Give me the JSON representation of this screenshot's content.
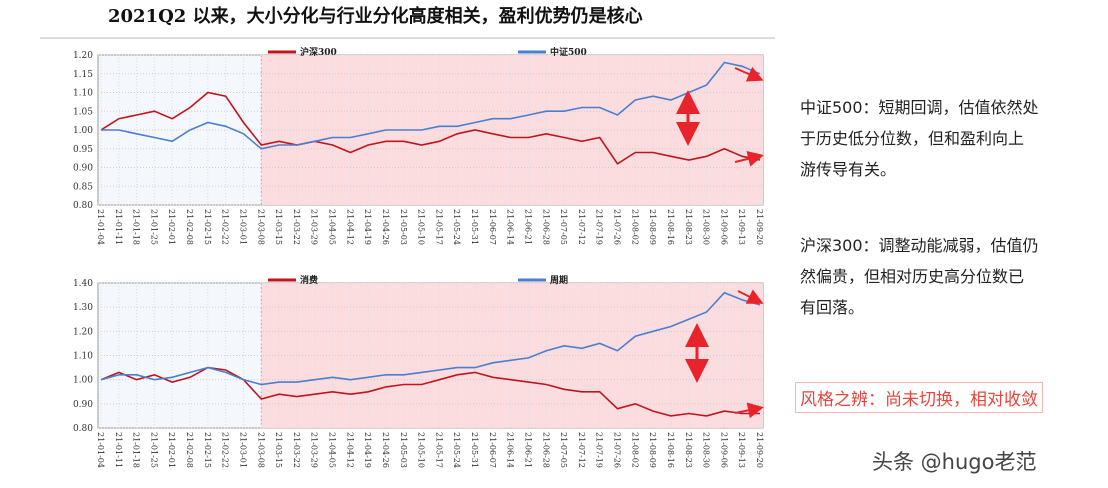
{
  "title": "2021Q2 以来，大小分化与行业分化高度相关，盈利优势仍是核心",
  "chart_data": [
    {
      "type": "line",
      "categories": [
        "21-01-04",
        "21-01-11",
        "21-01-18",
        "21-01-25",
        "21-02-01",
        "21-02-08",
        "21-02-15",
        "21-02-22",
        "21-03-01",
        "21-03-08",
        "21-03-15",
        "21-03-22",
        "21-03-29",
        "21-04-05",
        "21-04-12",
        "21-04-19",
        "21-04-26",
        "21-05-03",
        "21-05-10",
        "21-05-17",
        "21-05-24",
        "21-05-31",
        "21-06-07",
        "21-06-14",
        "21-06-21",
        "21-06-28",
        "21-07-05",
        "21-07-12",
        "21-07-19",
        "21-07-26",
        "21-08-02",
        "21-08-09",
        "21-08-16",
        "21-08-23",
        "21-08-30",
        "21-09-06",
        "21-09-13",
        "21-09-20"
      ],
      "series": [
        {
          "name": "沪深300",
          "color": "#c0151b",
          "values": [
            1.0,
            1.03,
            1.04,
            1.05,
            1.03,
            1.06,
            1.1,
            1.09,
            1.02,
            0.96,
            0.97,
            0.96,
            0.97,
            0.96,
            0.94,
            0.96,
            0.97,
            0.97,
            0.96,
            0.97,
            0.99,
            1.0,
            0.99,
            0.98,
            0.98,
            0.99,
            0.98,
            0.97,
            0.98,
            0.91,
            0.94,
            0.94,
            0.93,
            0.92,
            0.93,
            0.95,
            0.93,
            0.92
          ]
        },
        {
          "name": "中证500",
          "color": "#4a7fcf",
          "values": [
            1.0,
            1.0,
            0.99,
            0.98,
            0.97,
            1.0,
            1.02,
            1.01,
            0.99,
            0.95,
            0.96,
            0.96,
            0.97,
            0.98,
            0.98,
            0.99,
            1.0,
            1.0,
            1.0,
            1.01,
            1.01,
            1.02,
            1.03,
            1.03,
            1.04,
            1.05,
            1.05,
            1.06,
            1.06,
            1.04,
            1.08,
            1.09,
            1.08,
            1.1,
            1.12,
            1.18,
            1.17,
            1.15
          ]
        }
      ],
      "ylim": [
        0.8,
        1.2
      ],
      "yticks": [
        {
          "value": 0.8,
          "label": "0.80"
        },
        {
          "value": 0.85,
          "label": "0.85"
        },
        {
          "value": 0.9,
          "label": "0.90"
        },
        {
          "value": 0.95,
          "label": "0.95"
        },
        {
          "value": 1.0,
          "label": "1.00"
        },
        {
          "value": 1.05,
          "label": "1.05"
        },
        {
          "value": 1.1,
          "label": "1.10"
        },
        {
          "value": 1.15,
          "label": "1.15"
        },
        {
          "value": 1.2,
          "label": "1.20"
        }
      ],
      "grid": true,
      "shaded_from": "21-03-08"
    },
    {
      "type": "line",
      "categories": [
        "21-01-04",
        "21-01-11",
        "21-01-18",
        "21-01-25",
        "21-02-01",
        "21-02-08",
        "21-02-15",
        "21-02-22",
        "21-03-01",
        "21-03-08",
        "21-03-15",
        "21-03-22",
        "21-03-29",
        "21-04-05",
        "21-04-12",
        "21-04-19",
        "21-04-26",
        "21-05-03",
        "21-05-10",
        "21-05-17",
        "21-05-24",
        "21-05-31",
        "21-06-07",
        "21-06-14",
        "21-06-21",
        "21-06-28",
        "21-07-05",
        "21-07-12",
        "21-07-19",
        "21-07-26",
        "21-08-02",
        "21-08-09",
        "21-08-16",
        "21-08-23",
        "21-08-30",
        "21-09-06",
        "21-09-13",
        "21-09-20"
      ],
      "series": [
        {
          "name": "消费",
          "color": "#c0151b",
          "values": [
            1.0,
            1.03,
            1.0,
            1.02,
            0.99,
            1.01,
            1.05,
            1.04,
            1.0,
            0.92,
            0.94,
            0.93,
            0.94,
            0.95,
            0.94,
            0.95,
            0.97,
            0.98,
            0.98,
            1.0,
            1.02,
            1.03,
            1.01,
            1.0,
            0.99,
            0.98,
            0.96,
            0.95,
            0.95,
            0.88,
            0.9,
            0.87,
            0.85,
            0.86,
            0.85,
            0.87,
            0.86,
            0.86
          ]
        },
        {
          "name": "周期",
          "color": "#4a7fcf",
          "values": [
            1.0,
            1.02,
            1.02,
            1.0,
            1.01,
            1.03,
            1.05,
            1.03,
            1.0,
            0.98,
            0.99,
            0.99,
            1.0,
            1.01,
            1.0,
            1.01,
            1.02,
            1.02,
            1.03,
            1.04,
            1.05,
            1.05,
            1.07,
            1.08,
            1.09,
            1.12,
            1.14,
            1.13,
            1.15,
            1.12,
            1.18,
            1.2,
            1.22,
            1.25,
            1.28,
            1.36,
            1.33,
            1.31
          ]
        }
      ],
      "ylim": [
        0.8,
        1.4
      ],
      "yticks": [
        {
          "value": 0.8,
          "label": "0.80"
        },
        {
          "value": 0.9,
          "label": "0.90"
        },
        {
          "value": 1.0,
          "label": "1.00"
        },
        {
          "value": 1.1,
          "label": "1.10"
        },
        {
          "value": 1.2,
          "label": "1.20"
        },
        {
          "value": 1.3,
          "label": "1.30"
        },
        {
          "value": 1.4,
          "label": "1.40"
        }
      ],
      "grid": true,
      "shaded_from": "21-03-08"
    }
  ],
  "notes": [
    [
      "中证500：短期回调，估值依然处",
      "于历史低分位数，但和盈利向上",
      "游传导有关。"
    ],
    [
      "沪深300：调整动能减弱，估值仍",
      "然偏贵，但相对历史高分位数已",
      "有回落。"
    ]
  ],
  "conclusion": "风格之辨：尚未切换，相对收敛",
  "watermark": "头条 @hugo老范"
}
